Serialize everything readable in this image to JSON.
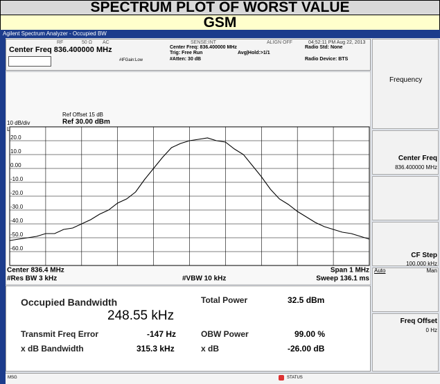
{
  "header": {
    "title": "SPECTRUM PLOT OF WORST VALUE",
    "subtitle": "GSM"
  },
  "screen": {
    "window_title": "Agilent Spectrum Analyzer - Occupied BW",
    "status": {
      "rf": "RF",
      "impedance": "50 Ω",
      "coupling": "AC",
      "sense": "SENSE:INT",
      "align": "ALIGN OFF",
      "datetime": "04:52:11 PM Aug 22, 2013"
    },
    "center_freq": "Center Freq 836.400000 MHz",
    "settings": {
      "center": "Center Freq: 836.400000 MHz",
      "trig": "Trig: Free Run",
      "avg": "Avg|Hold:>1/1",
      "atten": "#Atten: 30 dB",
      "ifgain": "#IFGain:Low",
      "radio_std": "Radio Std: None",
      "radio_device": "Radio Device: BTS"
    },
    "plot": {
      "scale": "10 dB/div",
      "log": "Log",
      "ref_offset": "Ref Offset 15 dB",
      "ref": "Ref 30.00 dBm",
      "ylim": [
        -70,
        30
      ],
      "yticks": [
        {
          "value": 20,
          "label": "20.0"
        },
        {
          "value": 10,
          "label": "10.0"
        },
        {
          "value": 0,
          "label": "0.00"
        },
        {
          "value": -10,
          "label": "-10.0"
        },
        {
          "value": -20,
          "label": "-20.0"
        },
        {
          "value": -30,
          "label": "-30.0"
        },
        {
          "value": -40,
          "label": "-40.0"
        },
        {
          "value": -50,
          "label": "-50.0"
        },
        {
          "value": -60,
          "label": "-60.0"
        }
      ],
      "xlim": [
        835.9,
        836.9
      ],
      "xticks": [
        836.0,
        836.1,
        836.2,
        836.3,
        836.4,
        836.5,
        836.6,
        836.7,
        836.8
      ],
      "trace": {
        "x": [
          835.9,
          835.925,
          835.95,
          835.975,
          836.0,
          836.025,
          836.05,
          836.075,
          836.1,
          836.125,
          836.15,
          836.175,
          836.2,
          836.225,
          836.25,
          836.275,
          836.3,
          836.325,
          836.35,
          836.375,
          836.4,
          836.425,
          836.45,
          836.475,
          836.5,
          836.525,
          836.55,
          836.575,
          836.6,
          836.625,
          836.65,
          836.675,
          836.7,
          836.725,
          836.75,
          836.775,
          836.8,
          836.825,
          836.85,
          836.875,
          836.9
        ],
        "y": [
          -52,
          -51,
          -50,
          -49,
          -47,
          -47,
          -44,
          -43,
          -40,
          -37,
          -33,
          -30,
          -25,
          -22,
          -17,
          -8,
          0,
          8,
          15,
          18,
          20,
          21,
          22,
          20,
          19,
          14,
          10,
          2,
          -6,
          -15,
          -22,
          -26,
          -31,
          -35,
          -39,
          -42,
          -44,
          -46,
          -47,
          -49,
          -51
        ]
      },
      "center": "Center  836.4 MHz",
      "res_bw": "#Res BW  3 kHz",
      "vbw": "#VBW  10 kHz",
      "span": "Span 1 MHz",
      "sweep": "Sweep  136.1 ms"
    },
    "results": {
      "obw_label": "Occupied Bandwidth",
      "obw_value": "248.55 kHz",
      "total_power_label": "Total Power",
      "total_power_value": "32.5 dBm",
      "tx_error_label": "Transmit Freq Error",
      "tx_error_value": "-147 Hz",
      "obw_power_label": "OBW Power",
      "obw_power_value": "99.00 %",
      "xdb_bw_label": "x dB Bandwidth",
      "xdb_bw_value": "315.3 kHz",
      "xdb_label": "x dB",
      "xdb_value": "-26.00 dB"
    },
    "softkeys": {
      "menu": "Frequency",
      "center_freq": "Center Freq",
      "center_freq_value": "836.400000 MHz",
      "cf_step": "CF Step",
      "cf_step_value": "100.000 kHz",
      "auto": "Auto",
      "man": "Man",
      "freq_offset": "Freq Offset",
      "freq_offset_value": "0 Hz"
    },
    "footer": {
      "msg": "MSG",
      "status": "STATUS"
    }
  }
}
